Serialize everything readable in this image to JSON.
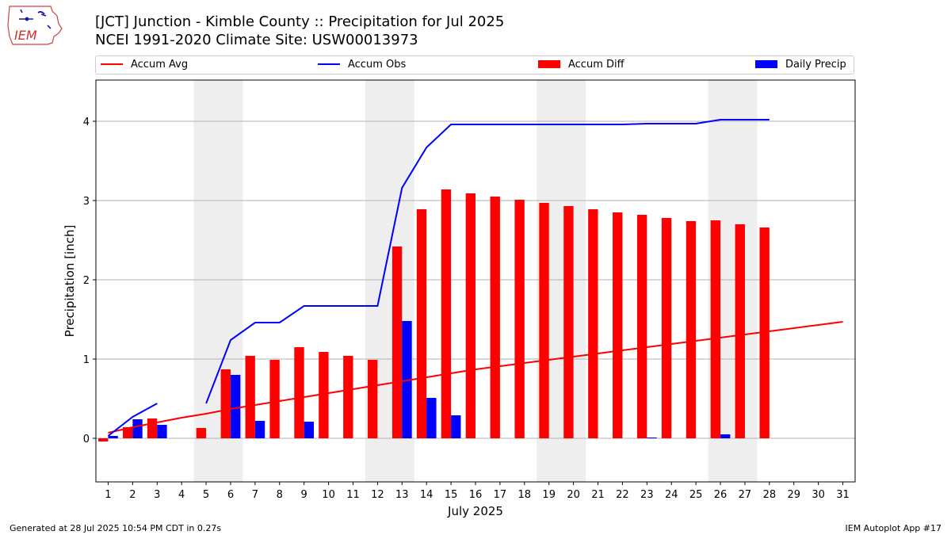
{
  "header": {
    "title": "[JCT] Junction - Kimble County :: Precipitation for Jul 2025",
    "subtitle": "NCEI 1991-2020 Climate Site: USW00013973",
    "logo_text": "IEM"
  },
  "legend": {
    "items": [
      {
        "label": "Accum Avg",
        "kind": "line",
        "color": "#ff0000"
      },
      {
        "label": "Accum Obs",
        "kind": "line",
        "color": "#0000ff"
      },
      {
        "label": "Accum Diff",
        "kind": "bar",
        "color": "#ff0000"
      },
      {
        "label": "Daily Precip",
        "kind": "bar",
        "color": "#0000ff"
      }
    ]
  },
  "footer": {
    "left": "Generated at 28 Jul 2025 10:54 PM CDT in 0.27s",
    "right": "IEM Autoplot App #17"
  },
  "chart_data": {
    "type": "bar",
    "title": "[JCT] Junction - Kimble County :: Precipitation for Jul 2025",
    "xlabel": "July 2025",
    "ylabel": "Precipitation [inch]",
    "xlim": [
      0.5,
      31.5
    ],
    "ylim": [
      -0.55,
      4.52
    ],
    "yticks": [
      0,
      1,
      2,
      3,
      4
    ],
    "grid": "y",
    "legend_position": "top",
    "categories": [
      1,
      2,
      3,
      4,
      5,
      6,
      7,
      8,
      9,
      10,
      11,
      12,
      13,
      14,
      15,
      16,
      17,
      18,
      19,
      20,
      21,
      22,
      23,
      24,
      25,
      26,
      27,
      28,
      29,
      30,
      31
    ],
    "shaded_weekends": [
      [
        5,
        6
      ],
      [
        12,
        13
      ],
      [
        19,
        20
      ],
      [
        26,
        27
      ]
    ],
    "shade_color": "#eeeeee",
    "series": [
      {
        "name": "Accum Avg",
        "kind": "line",
        "color": "#ff0000",
        "x": [
          1,
          2,
          3,
          4,
          5,
          6,
          7,
          8,
          9,
          10,
          11,
          12,
          13,
          14,
          15,
          16,
          17,
          18,
          19,
          20,
          21,
          22,
          23,
          24,
          25,
          26,
          27,
          28,
          29,
          30,
          31
        ],
        "values": [
          0.07,
          0.14,
          0.2,
          0.26,
          0.31,
          0.37,
          0.42,
          0.47,
          0.52,
          0.57,
          0.62,
          0.67,
          0.72,
          0.77,
          0.82,
          0.87,
          0.91,
          0.95,
          0.99,
          1.03,
          1.07,
          1.11,
          1.15,
          1.19,
          1.23,
          1.27,
          1.31,
          1.35,
          1.39,
          1.43,
          1.47
        ]
      },
      {
        "name": "Accum Obs",
        "kind": "line",
        "color": "#0000ff",
        "x": [
          1,
          2,
          3,
          null,
          5,
          6,
          7,
          8,
          9,
          10,
          11,
          12,
          13,
          14,
          15,
          16,
          17,
          18,
          19,
          20,
          21,
          22,
          23,
          24,
          25,
          26,
          27,
          28
        ],
        "values": [
          0.03,
          0.27,
          0.44,
          null,
          0.44,
          1.24,
          1.46,
          1.46,
          1.67,
          1.67,
          1.67,
          1.67,
          3.16,
          3.67,
          3.96,
          3.96,
          3.96,
          3.96,
          3.96,
          3.96,
          3.96,
          3.96,
          3.97,
          3.97,
          3.97,
          4.02,
          4.02,
          4.02
        ]
      },
      {
        "name": "Accum Diff",
        "kind": "bar",
        "color": "#ff0000",
        "x": [
          1,
          2,
          3,
          4,
          5,
          6,
          7,
          8,
          9,
          10,
          11,
          12,
          13,
          14,
          15,
          16,
          17,
          18,
          19,
          20,
          21,
          22,
          23,
          24,
          25,
          26,
          27,
          28
        ],
        "values": [
          -0.04,
          0.14,
          0.25,
          0.0,
          0.13,
          0.87,
          1.04,
          0.99,
          1.15,
          1.09,
          1.04,
          0.99,
          2.42,
          2.89,
          3.14,
          3.09,
          3.05,
          3.01,
          2.97,
          2.93,
          2.89,
          2.85,
          2.82,
          2.78,
          2.74,
          2.75,
          2.7,
          2.66
        ]
      },
      {
        "name": "Daily Precip",
        "kind": "bar",
        "color": "#0000ff",
        "x": [
          1,
          2,
          3,
          4,
          5,
          6,
          7,
          8,
          9,
          10,
          11,
          12,
          13,
          14,
          15,
          16,
          17,
          18,
          19,
          20,
          21,
          22,
          23,
          24,
          25,
          26,
          27,
          28
        ],
        "values": [
          0.03,
          0.24,
          0.17,
          0.0,
          0.0,
          0.8,
          0.22,
          0.0,
          0.21,
          0.0,
          0.0,
          0.0,
          1.48,
          0.51,
          0.29,
          0.0,
          0.0,
          0.0,
          0.0,
          0.0,
          0.0,
          0.0,
          0.01,
          0.0,
          0.0,
          0.05,
          0.0,
          0.0
        ]
      }
    ]
  }
}
